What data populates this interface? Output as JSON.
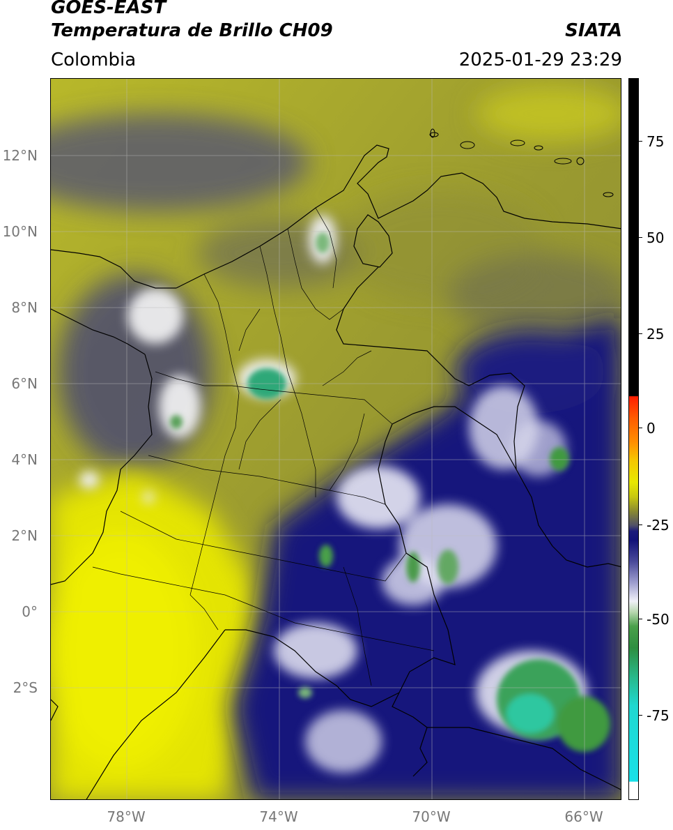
{
  "header": {
    "title_line1": "GOES-EAST",
    "title_line2": "Temperatura de Brillo CH09",
    "region": "Colombia",
    "agency": "SIATA",
    "timestamp": "2025-01-29 23:29"
  },
  "map": {
    "lat_range": [
      -5,
      14
    ],
    "lon_range": [
      -80.0,
      -65.0
    ],
    "lat_ticks": [
      {
        "value": 12,
        "label": "12°N"
      },
      {
        "value": 10,
        "label": "10°N"
      },
      {
        "value": 8,
        "label": "8°N"
      },
      {
        "value": 6,
        "label": "6°N"
      },
      {
        "value": 4,
        "label": "4°N"
      },
      {
        "value": 2,
        "label": "2°N"
      },
      {
        "value": 0,
        "label": "0°"
      },
      {
        "value": -2,
        "label": "2°S"
      }
    ],
    "lon_ticks": [
      {
        "value": -78,
        "label": "78°W"
      },
      {
        "value": -74,
        "label": "74°W"
      },
      {
        "value": -70,
        "label": "70°W"
      },
      {
        "value": -66,
        "label": "66°W"
      }
    ],
    "colors": {
      "warm_yellow": "#e8e800",
      "olive": "#9a9a25",
      "gray_blue": "#505070",
      "deep_blue": "#12127a",
      "cold_white": "#f2f2fa",
      "cold_green": "#3f9a3f",
      "coldest_teal": "#2fc7a0"
    }
  },
  "colorbar": {
    "range": [
      -95,
      90
    ],
    "ticks": [
      {
        "value": 75,
        "label": "75"
      },
      {
        "value": 50,
        "label": "50"
      },
      {
        "value": 25,
        "label": "25"
      },
      {
        "value": 0,
        "label": "0"
      },
      {
        "value": -25,
        "label": "-25"
      },
      {
        "value": -50,
        "label": "-50"
      },
      {
        "value": -75,
        "label": "-75"
      }
    ]
  }
}
